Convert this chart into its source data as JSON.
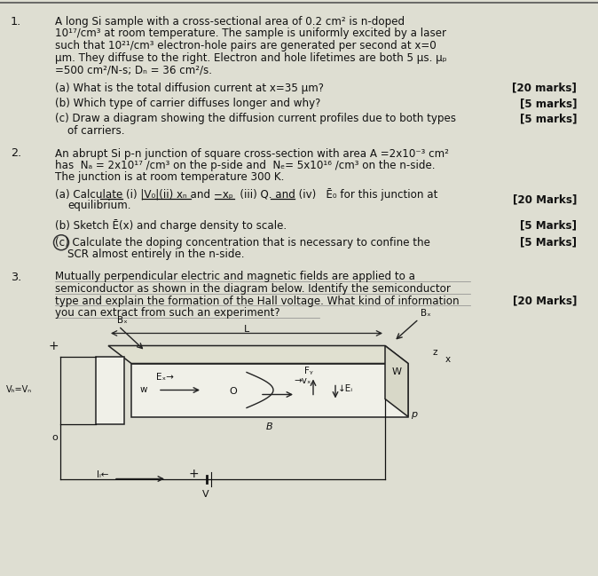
{
  "bg_color": "#deded2",
  "text_color": "#111111",
  "q1_lines": [
    "A long Si sample with a cross-sectional area of 0.2 cm² is n-doped",
    "10¹⁷/cm³ at room temperature. The sample is uniformly excited by a laser",
    "such that 10²¹/cm³ electron-hole pairs are generated per second at x=0",
    "μm. They diffuse to the right. Electron and hole lifetimes are both 5 μs. μₚ",
    "=500 cm²/N-s; Dₙ = 36 cm²/s."
  ],
  "q1a": "(a) What is the total diffusion current at x=35 μm?",
  "q1a_m": "[20 marks]",
  "q1b": "(b) Which type of carrier diffuses longer and why?",
  "q1b_m": "[5 marks]",
  "q1c1": "(c) Draw a diagram showing the diffusion current profiles due to both types",
  "q1c2": "    of carriers.",
  "q1c_m": "[5 marks]",
  "q2_lines": [
    "An abrupt Si p-n junction of square cross-section with area A =2x10⁻³ cm²",
    "has  Nₐ = 2x10¹⁷ /cm³ on the p-side and  Nₑ= 5x10¹⁶ /cm³ on the n-side.",
    "The junction is at room temperature 300 K."
  ],
  "q2a1": "(a) Calculate (i) |V₀|(ii) xₙ and −xₚ  (iii) Q. and (iv)   Ē₀ for this junction at",
  "q2a2": "    equilibrium.",
  "q2a_m": "[20 Marks]",
  "q2b": "(b) Sketch Ē(x) and charge density to scale.",
  "q2b_m": "[5 Marks]",
  "q2c1": "(c) Calculate the doping concentration that is necessary to confine the",
  "q2c2": "    SCR almost entirely in the n-side.",
  "q2c_m": "[5 Marks]",
  "q3_lines": [
    "Mutually perpendicular electric and magnetic fields are applied to a",
    "semiconductor as shown in the diagram below. Identify the semiconductor",
    "type and explain the formation of the Hall voltage. What kind of information",
    "you can extract from such an experiment?"
  ],
  "q3_m": "[20 Marks]"
}
